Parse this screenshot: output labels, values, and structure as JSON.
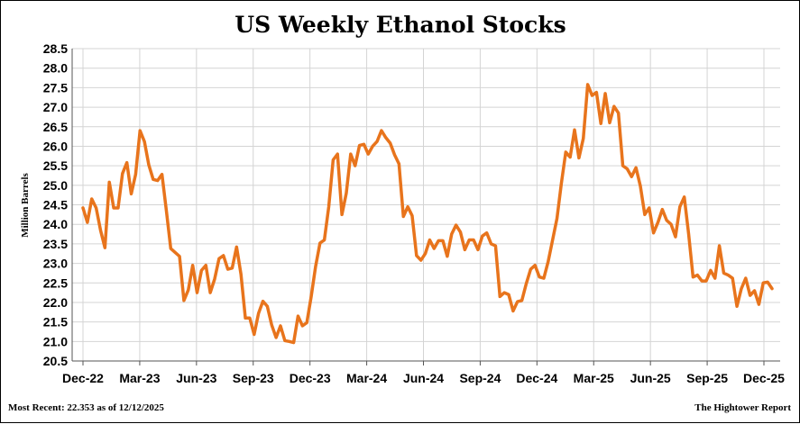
{
  "chart_data": {
    "type": "line",
    "title": "US Weekly Ethanol Stocks",
    "ylabel": "Million Barrels",
    "xlabel": "",
    "ylim": [
      20.5,
      28.5
    ],
    "ytick_step": 0.5,
    "yticks": [
      "20.5",
      "21.0",
      "21.5",
      "22.0",
      "22.5",
      "23.0",
      "23.5",
      "24.0",
      "24.5",
      "25.0",
      "25.5",
      "26.0",
      "26.5",
      "27.0",
      "27.5",
      "28.0",
      "28.5"
    ],
    "xticks": [
      "Dec-22",
      "Mar-23",
      "Jun-23",
      "Sep-23",
      "Dec-23",
      "Mar-24",
      "Jun-24",
      "Sep-24",
      "Dec-24",
      "Mar-25",
      "Jun-25",
      "Sep-25",
      "Dec-25"
    ],
    "grid": true,
    "series": [
      {
        "name": "",
        "color": "#e8741c",
        "values": [
          24.42,
          24.05,
          24.65,
          24.42,
          23.85,
          23.4,
          25.08,
          24.42,
          24.42,
          25.3,
          25.58,
          24.78,
          25.28,
          26.4,
          26.12,
          25.52,
          25.15,
          25.12,
          25.28,
          24.35,
          23.38,
          23.28,
          23.18,
          22.05,
          22.32,
          22.95,
          22.25,
          22.82,
          22.95,
          22.25,
          22.6,
          23.12,
          23.2,
          22.85,
          22.88,
          23.42,
          22.72,
          21.6,
          21.6,
          21.18,
          21.72,
          22.03,
          21.9,
          21.42,
          21.1,
          21.4,
          21.02,
          21.0,
          20.97,
          21.65,
          21.4,
          21.48,
          22.15,
          22.92,
          23.52,
          23.6,
          24.45,
          25.65,
          25.8,
          24.25,
          24.8,
          25.8,
          25.5,
          26.02,
          26.05,
          25.8,
          26.0,
          26.12,
          26.4,
          26.22,
          26.08,
          25.78,
          25.55,
          24.2,
          24.45,
          24.22,
          23.2,
          23.08,
          23.25,
          23.6,
          23.38,
          23.58,
          23.58,
          23.18,
          23.75,
          23.98,
          23.8,
          23.35,
          23.6,
          23.6,
          23.35,
          23.7,
          23.78,
          23.5,
          23.45,
          22.15,
          22.25,
          22.2,
          21.78,
          22.02,
          22.05,
          22.48,
          22.85,
          22.95,
          22.65,
          22.62,
          23.05,
          23.6,
          24.15,
          25.05,
          25.85,
          25.72,
          26.42,
          25.7,
          26.2,
          27.58,
          27.3,
          27.38,
          26.58,
          27.35,
          26.6,
          27.02,
          26.85,
          25.5,
          25.42,
          25.22,
          25.45,
          24.98,
          24.25,
          24.42,
          23.78,
          24.05,
          24.38,
          24.1,
          24.0,
          23.68,
          24.45,
          24.7,
          23.75,
          22.65,
          22.7,
          22.55,
          22.55,
          22.82,
          22.62,
          23.45,
          22.75,
          22.7,
          22.62,
          21.9,
          22.35,
          22.62,
          22.18,
          22.3,
          21.95,
          22.5,
          22.52,
          22.353
        ]
      }
    ]
  },
  "footer": {
    "most_recent": "Most Recent: 22.353 as of 12/12/2025",
    "source": "The Hightower Report"
  }
}
